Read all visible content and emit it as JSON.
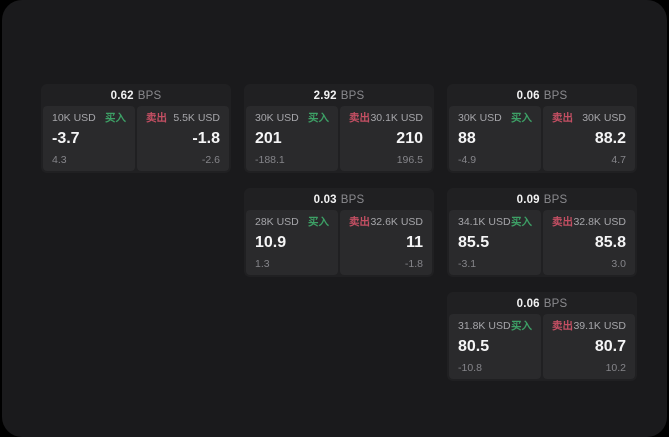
{
  "labels": {
    "bps_unit": "BPS",
    "buy": "买入",
    "sell": "卖出"
  },
  "colors": {
    "outer_background": "#000000",
    "page_background": "#1a1a1c",
    "card_background": "#202022",
    "panel_background": "#2a2a2c",
    "buy_green": "#3da066",
    "sell_red": "#c44f63",
    "primary_text": "#f5f5f6",
    "muted_text": "#8a8a8e"
  },
  "cards": [
    {
      "bps": "0.62",
      "buy": {
        "amount": "10K USD",
        "price": "-3.7",
        "change": "4.3"
      },
      "sell": {
        "amount": "5.5K USD",
        "price": "-1.8",
        "change": "-2.6"
      }
    },
    {
      "bps": "2.92",
      "buy": {
        "amount": "30K USD",
        "price": "201",
        "change": "-188.1"
      },
      "sell": {
        "amount": "30.1K USD",
        "price": "210",
        "change": "196.5"
      }
    },
    {
      "bps": "0.06",
      "buy": {
        "amount": "30K USD",
        "price": "88",
        "change": "-4.9"
      },
      "sell": {
        "amount": "30K USD",
        "price": "88.2",
        "change": "4.7"
      }
    },
    {
      "bps": "0.03",
      "buy": {
        "amount": "28K USD",
        "price": "10.9",
        "change": "1.3"
      },
      "sell": {
        "amount": "32.6K USD",
        "price": "11",
        "change": "-1.8"
      }
    },
    {
      "bps": "0.09",
      "buy": {
        "amount": "34.1K USD",
        "price": "85.5",
        "change": "-3.1"
      },
      "sell": {
        "amount": "32.8K USD",
        "price": "85.8",
        "change": "3.0"
      }
    },
    {
      "bps": "0.06",
      "buy": {
        "amount": "31.8K USD",
        "price": "80.5",
        "change": "-10.8"
      },
      "sell": {
        "amount": "39.1K USD",
        "price": "80.7",
        "change": "10.2"
      }
    }
  ]
}
